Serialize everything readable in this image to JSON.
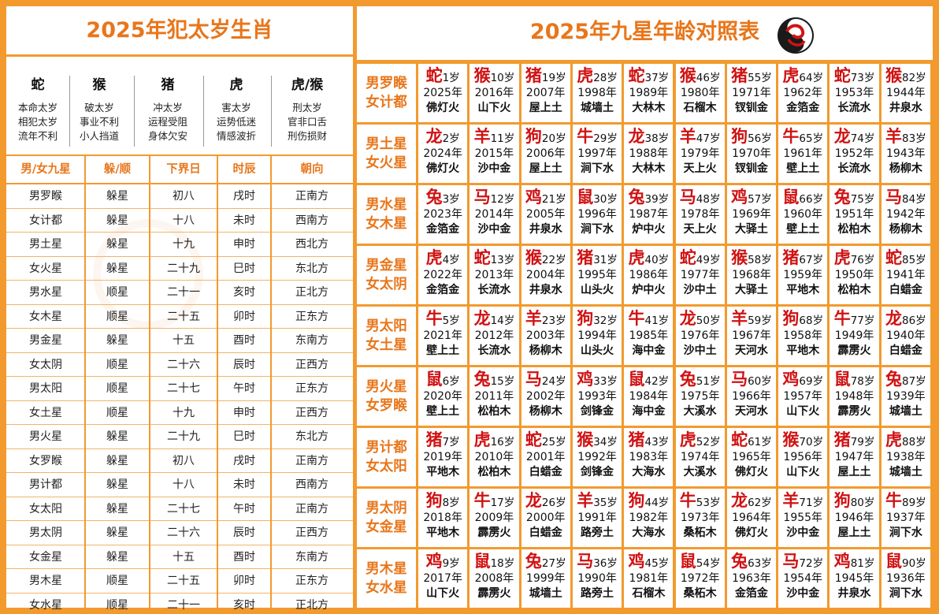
{
  "left": {
    "title": "2025年犯太岁生肖",
    "zodiacs": [
      {
        "name": "蛇",
        "lines": [
          "本命太岁",
          "相犯太岁",
          "流年不利"
        ]
      },
      {
        "name": "猴",
        "lines": [
          "破太岁",
          "事业不利",
          "小人挡道"
        ]
      },
      {
        "name": "猪",
        "lines": [
          "冲太岁",
          "运程受阻",
          "身体欠安"
        ]
      },
      {
        "name": "虎",
        "lines": [
          "害太岁",
          "运势低迷",
          "情感波折"
        ]
      },
      {
        "name": "虎/猴",
        "lines": [
          "刑太岁",
          "官非口舌",
          "刑伤损财"
        ]
      }
    ],
    "headers": [
      "男/女九星",
      "躲/顺",
      "下界日",
      "时辰",
      "朝向"
    ],
    "rows": [
      [
        "男罗睺",
        "躲星",
        "初八",
        "戌时",
        "正南方"
      ],
      [
        "女计都",
        "躲星",
        "十八",
        "未时",
        "西南方"
      ],
      [
        "男土星",
        "躲星",
        "十九",
        "申时",
        "西北方"
      ],
      [
        "女火星",
        "躲星",
        "二十九",
        "巳时",
        "东北方"
      ],
      [
        "男水星",
        "顺星",
        "二十一",
        "亥时",
        "正北方"
      ],
      [
        "女木星",
        "顺星",
        "二十五",
        "卯时",
        "正东方"
      ],
      [
        "男金星",
        "躲星",
        "十五",
        "酉时",
        "东南方"
      ],
      [
        "女太阴",
        "顺星",
        "二十六",
        "辰时",
        "正西方"
      ],
      [
        "男太阳",
        "顺星",
        "二十七",
        "午时",
        "正东方"
      ],
      [
        "女土星",
        "顺星",
        "十九",
        "申时",
        "正西方"
      ],
      [
        "男火星",
        "躲星",
        "二十九",
        "巳时",
        "东北方"
      ],
      [
        "女罗睺",
        "躲星",
        "初八",
        "戌时",
        "正南方"
      ],
      [
        "男计都",
        "躲星",
        "十八",
        "未时",
        "西南方"
      ],
      [
        "女太阳",
        "躲星",
        "二十七",
        "午时",
        "正南方"
      ],
      [
        "男太阴",
        "躲星",
        "二十六",
        "辰时",
        "正西方"
      ],
      [
        "女金星",
        "躲星",
        "十五",
        "酉时",
        "东南方"
      ],
      [
        "男木星",
        "顺星",
        "二十五",
        "卯时",
        "正东方"
      ],
      [
        "女水星",
        "顺星",
        "二十一",
        "亥时",
        "正北方"
      ]
    ]
  },
  "right": {
    "title": "2025年九星年龄对照表",
    "logo": "yin-yang-swirl-icon",
    "rows": [
      {
        "label": [
          "男罗睺",
          "女计都"
        ],
        "cells": [
          [
            "蛇",
            "1岁",
            "2025年",
            "佛灯火"
          ],
          [
            "猴",
            "10岁",
            "2016年",
            "山下火"
          ],
          [
            "猪",
            "19岁",
            "2007年",
            "屋上土"
          ],
          [
            "虎",
            "28岁",
            "1998年",
            "城墙土"
          ],
          [
            "蛇",
            "37岁",
            "1989年",
            "大林木"
          ],
          [
            "猴",
            "46岁",
            "1980年",
            "石榴木"
          ],
          [
            "猪",
            "55岁",
            "1971年",
            "钗钏金"
          ],
          [
            "虎",
            "64岁",
            "1962年",
            "金箔金"
          ],
          [
            "蛇",
            "73岁",
            "1953年",
            "长流水"
          ],
          [
            "猴",
            "82岁",
            "1944年",
            "井泉水"
          ]
        ]
      },
      {
        "label": [
          "男土星",
          "女火星"
        ],
        "cells": [
          [
            "龙",
            "2岁",
            "2024年",
            "佛灯火"
          ],
          [
            "羊",
            "11岁",
            "2015年",
            "沙中金"
          ],
          [
            "狗",
            "20岁",
            "2006年",
            "屋上土"
          ],
          [
            "牛",
            "29岁",
            "1997年",
            "涧下水"
          ],
          [
            "龙",
            "38岁",
            "1988年",
            "大林木"
          ],
          [
            "羊",
            "47岁",
            "1979年",
            "天上火"
          ],
          [
            "狗",
            "56岁",
            "1970年",
            "钗钏金"
          ],
          [
            "牛",
            "65岁",
            "1961年",
            "壁上土"
          ],
          [
            "龙",
            "74岁",
            "1952年",
            "长流水"
          ],
          [
            "羊",
            "83岁",
            "1943年",
            "杨柳木"
          ]
        ]
      },
      {
        "label": [
          "男水星",
          "女木星"
        ],
        "cells": [
          [
            "兔",
            "3岁",
            "2023年",
            "金箔金"
          ],
          [
            "马",
            "12岁",
            "2014年",
            "沙中金"
          ],
          [
            "鸡",
            "21岁",
            "2005年",
            "井泉水"
          ],
          [
            "鼠",
            "30岁",
            "1996年",
            "涧下水"
          ],
          [
            "兔",
            "39岁",
            "1987年",
            "炉中火"
          ],
          [
            "马",
            "48岁",
            "1978年",
            "天上火"
          ],
          [
            "鸡",
            "57岁",
            "1969年",
            "大驿土"
          ],
          [
            "鼠",
            "66岁",
            "1960年",
            "壁上土"
          ],
          [
            "兔",
            "75岁",
            "1951年",
            "松柏木"
          ],
          [
            "马",
            "84岁",
            "1942年",
            "杨柳木"
          ]
        ]
      },
      {
        "label": [
          "男金星",
          "女太阴"
        ],
        "cells": [
          [
            "虎",
            "4岁",
            "2022年",
            "金箔金"
          ],
          [
            "蛇",
            "13岁",
            "2013年",
            "长流水"
          ],
          [
            "猴",
            "22岁",
            "2004年",
            "井泉水"
          ],
          [
            "猪",
            "31岁",
            "1995年",
            "山头火"
          ],
          [
            "虎",
            "40岁",
            "1986年",
            "炉中火"
          ],
          [
            "蛇",
            "49岁",
            "1977年",
            "沙中土"
          ],
          [
            "猴",
            "58岁",
            "1968年",
            "大驿土"
          ],
          [
            "猪",
            "67岁",
            "1959年",
            "平地木"
          ],
          [
            "虎",
            "76岁",
            "1950年",
            "松柏木"
          ],
          [
            "蛇",
            "85岁",
            "1941年",
            "白蜡金"
          ]
        ]
      },
      {
        "label": [
          "男太阳",
          "女土星"
        ],
        "cells": [
          [
            "牛",
            "5岁",
            "2021年",
            "壁上土"
          ],
          [
            "龙",
            "14岁",
            "2012年",
            "长流水"
          ],
          [
            "羊",
            "23岁",
            "2003年",
            "杨柳木"
          ],
          [
            "狗",
            "32岁",
            "1994年",
            "山头火"
          ],
          [
            "牛",
            "41岁",
            "1985年",
            "海中金"
          ],
          [
            "龙",
            "50岁",
            "1976年",
            "沙中土"
          ],
          [
            "羊",
            "59岁",
            "1967年",
            "天河水"
          ],
          [
            "狗",
            "68岁",
            "1958年",
            "平地木"
          ],
          [
            "牛",
            "77岁",
            "1949年",
            "霹雳火"
          ],
          [
            "龙",
            "86岁",
            "1940年",
            "白蜡金"
          ]
        ]
      },
      {
        "label": [
          "男火星",
          "女罗睺"
        ],
        "cells": [
          [
            "鼠",
            "6岁",
            "2020年",
            "壁上土"
          ],
          [
            "兔",
            "15岁",
            "2011年",
            "松柏木"
          ],
          [
            "马",
            "24岁",
            "2002年",
            "杨柳木"
          ],
          [
            "鸡",
            "33岁",
            "1993年",
            "剑锋金"
          ],
          [
            "鼠",
            "42岁",
            "1984年",
            "海中金"
          ],
          [
            "兔",
            "51岁",
            "1975年",
            "大溪水"
          ],
          [
            "马",
            "60岁",
            "1966年",
            "天河水"
          ],
          [
            "鸡",
            "69岁",
            "1957年",
            "山下火"
          ],
          [
            "鼠",
            "78岁",
            "1948年",
            "霹雳火"
          ],
          [
            "兔",
            "87岁",
            "1939年",
            "城墙土"
          ]
        ]
      },
      {
        "label": [
          "男计都",
          "女太阳"
        ],
        "cells": [
          [
            "猪",
            "7岁",
            "2019年",
            "平地木"
          ],
          [
            "虎",
            "16岁",
            "2010年",
            "松柏木"
          ],
          [
            "蛇",
            "25岁",
            "2001年",
            "白蜡金"
          ],
          [
            "猴",
            "34岁",
            "1992年",
            "剑锋金"
          ],
          [
            "猪",
            "43岁",
            "1983年",
            "大海水"
          ],
          [
            "虎",
            "52岁",
            "1974年",
            "大溪水"
          ],
          [
            "蛇",
            "61岁",
            "1965年",
            "佛灯火"
          ],
          [
            "猴",
            "70岁",
            "1956年",
            "山下火"
          ],
          [
            "猪",
            "79岁",
            "1947年",
            "屋上土"
          ],
          [
            "虎",
            "88岁",
            "1938年",
            "城墙土"
          ]
        ]
      },
      {
        "label": [
          "男太阴",
          "女金星"
        ],
        "cells": [
          [
            "狗",
            "8岁",
            "2018年",
            "平地木"
          ],
          [
            "牛",
            "17岁",
            "2009年",
            "霹雳火"
          ],
          [
            "龙",
            "26岁",
            "2000年",
            "白蜡金"
          ],
          [
            "羊",
            "35岁",
            "1991年",
            "路旁土"
          ],
          [
            "狗",
            "44岁",
            "1982年",
            "大海水"
          ],
          [
            "牛",
            "53岁",
            "1973年",
            "桑柘木"
          ],
          [
            "龙",
            "62岁",
            "1964年",
            "佛灯火"
          ],
          [
            "羊",
            "71岁",
            "1955年",
            "沙中金"
          ],
          [
            "狗",
            "80岁",
            "1946年",
            "屋上土"
          ],
          [
            "牛",
            "89岁",
            "1937年",
            "涧下水"
          ]
        ]
      },
      {
        "label": [
          "男木星",
          "女水星"
        ],
        "cells": [
          [
            "鸡",
            "9岁",
            "2017年",
            "山下火"
          ],
          [
            "鼠",
            "18岁",
            "2008年",
            "霹雳火"
          ],
          [
            "兔",
            "27岁",
            "1999年",
            "城墙土"
          ],
          [
            "马",
            "36岁",
            "1990年",
            "路旁土"
          ],
          [
            "鸡",
            "45岁",
            "1981年",
            "石榴木"
          ],
          [
            "鼠",
            "54岁",
            "1972年",
            "桑柘木"
          ],
          [
            "兔",
            "63岁",
            "1963年",
            "金箔金"
          ],
          [
            "马",
            "72岁",
            "1954年",
            "沙中金"
          ],
          [
            "鸡",
            "81岁",
            "1945年",
            "井泉水"
          ],
          [
            "鼠",
            "90岁",
            "1936年",
            "涧下水"
          ]
        ]
      }
    ]
  },
  "colors": {
    "frame": "#F29A2E",
    "accent": "#E8761B",
    "animal": "#D01212"
  }
}
